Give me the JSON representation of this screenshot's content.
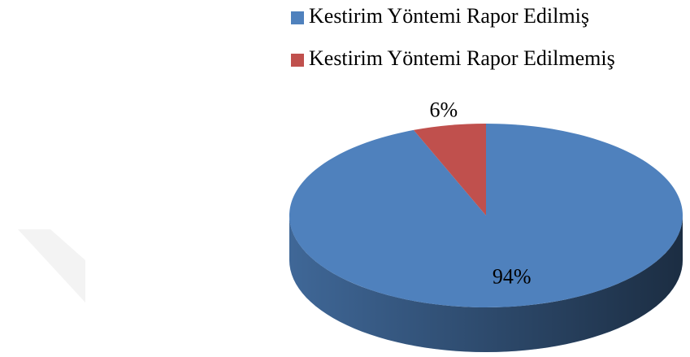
{
  "chart_data": {
    "type": "pie",
    "categories": [
      "Kestirim Yöntemi Rapor Edilmiş",
      "Kestirim Yöntemi Rapor Edilmemiş"
    ],
    "values": [
      94,
      6
    ],
    "value_labels": [
      "94%",
      "6%"
    ],
    "colors": [
      "#4f81bd",
      "#c0504d"
    ],
    "legend": "top-right"
  }
}
